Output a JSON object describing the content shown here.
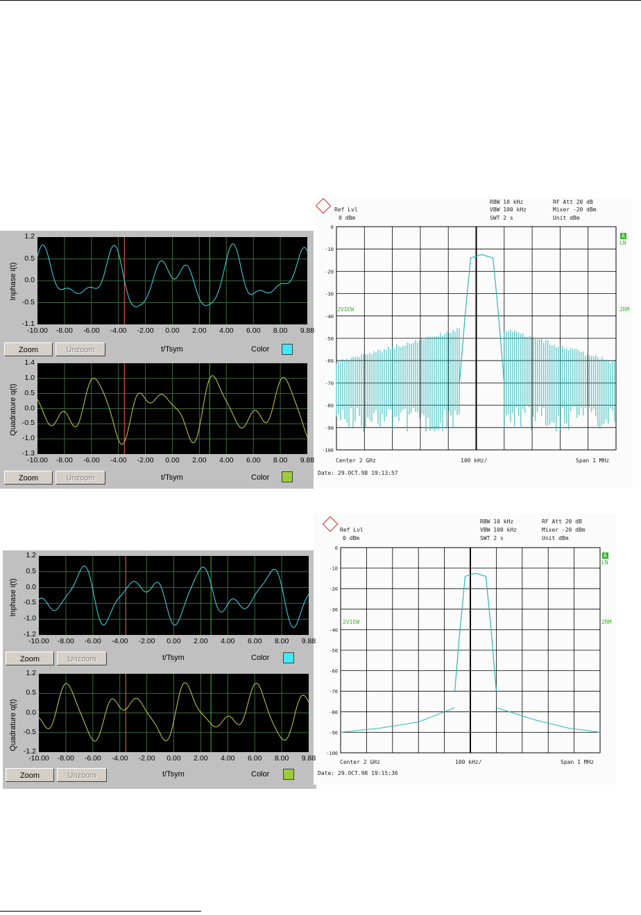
{
  "scope": {
    "buttons": {
      "zoom": "Zoom",
      "unzoom": "Unzoom",
      "color": "Color"
    },
    "xaxis_label": "t/Tsym",
    "x_ticks": [
      "-10.00",
      "-8.00",
      "-6.00",
      "-4.00",
      "-2.00",
      "0.00",
      "2.00",
      "4.00",
      "6.00",
      "8.00",
      "9.88"
    ],
    "colors": {
      "inphase": "#40e0f0",
      "quadrature": "#c8d44a",
      "cursor_red": "#ff6060",
      "cursor_green": "#30c030",
      "swatch_cyan": "#40e8f8",
      "swatch_green": "#9ccc3c"
    }
  },
  "top": {
    "inphase": {
      "ylabel": "Inphase i(t)",
      "y_ticks": [
        "1.2",
        "0.5",
        "0.0",
        "-0.5",
        "-1.1"
      ]
    },
    "quadrature": {
      "ylabel": "Quadrature q(t)",
      "y_ticks": [
        "1.4",
        "1.0",
        "0.5",
        "0.0",
        "-0.5",
        "-1.0",
        "-1.3"
      ]
    }
  },
  "bottom": {
    "inphase": {
      "ylabel": "Inphase i(t)",
      "y_ticks": [
        "1.2",
        "0.5",
        "0.0",
        "-0.5",
        "-1.0",
        "-1.2"
      ]
    },
    "quadrature": {
      "ylabel": "Quadrature q(t)",
      "y_ticks": [
        "1.2",
        "0.5",
        "0.0",
        "-0.5",
        "-1.2"
      ]
    }
  },
  "analyzer": {
    "ref_lvl": "Ref Lvl",
    "ref_val": "0 dBm",
    "rbw": "RBW   10 kHz",
    "vbw": "VBW  100 kHz",
    "swt": "SWT     2 s",
    "rfatt": "RF Att    20 dB",
    "mixer": "Mixer    -20 dBm",
    "unit": "Unit      dBm",
    "badge_a": "A",
    "ln": "LN",
    "view": "2VIEW",
    "rm": "2RM",
    "center": "Center 2 GHz",
    "span_div": "100 kHz/",
    "span": "Span 1 MHz",
    "y_ticks": [
      "0",
      "-10",
      "-20",
      "-30",
      "-40",
      "-50",
      "-60",
      "-70",
      "-80",
      "-90",
      "-100"
    ],
    "top_date": "Date:      29.OCT.98  19:13:57",
    "bottom_date": "Date:      29.OCT.98  19:15:36",
    "trace_color": "#2ab8b8"
  }
}
